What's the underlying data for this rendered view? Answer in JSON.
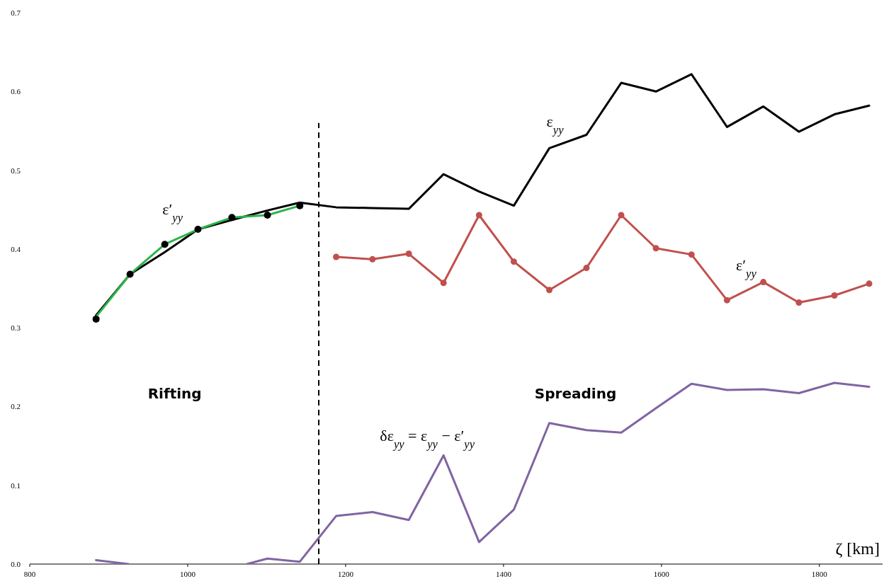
{
  "chart_data": {
    "type": "line",
    "xlabel": "ζ [km]",
    "x": [
      884,
      927,
      971,
      1013,
      1056,
      1101,
      1142,
      1188,
      1234,
      1280,
      1324,
      1369,
      1413,
      1458,
      1505,
      1549,
      1593,
      1638,
      1683,
      1729,
      1774,
      1819,
      1863
    ],
    "series": [
      {
        "name": "ε$_{yy}$",
        "color": "#000000",
        "values": [
          0.316,
          0.368,
          0.396,
          0.425,
          0.437,
          0.449,
          0.459,
          0.453,
          0.452,
          0.451,
          0.495,
          0.473,
          0.455,
          0.528,
          0.545,
          0.611,
          0.6,
          0.622,
          0.555,
          0.581,
          0.549,
          0.571,
          0.582
        ]
      },
      {
        "name": "ε′$_{yy}$",
        "color": "#2db34a",
        "x": [
          884,
          927,
          971,
          1013,
          1056,
          1101,
          1142
        ],
        "values": [
          0.314,
          0.368,
          0.406,
          0.425,
          0.44,
          0.443,
          0.455
        ]
      },
      {
        "type": "scatter",
        "marker": "circle",
        "color": "#000000",
        "x": [
          884,
          927,
          971,
          1013,
          1056,
          1101,
          1142
        ],
        "values": [
          0.311,
          0.368,
          0.406,
          0.425,
          0.44,
          0.443,
          0.455
        ]
      },
      {
        "name": "ε′$_{yy}$",
        "color": "#c0504d",
        "marker": "circle",
        "x": [
          1188,
          1234,
          1280,
          1324,
          1369,
          1413,
          1458,
          1505,
          1549,
          1593,
          1638,
          1683,
          1729,
          1774,
          1819,
          1863
        ],
        "values": [
          0.39,
          0.387,
          0.394,
          0.357,
          0.443,
          0.384,
          0.348,
          0.376,
          0.443,
          0.401,
          0.393,
          0.335,
          0.358,
          0.332,
          0.341,
          0.356
        ]
      },
      {
        "name": "δε$_{yy}$ = ε$_{yy}$ − ε′$_{yy}$",
        "color": "#8064a2",
        "x": [
          884,
          925,
          1000,
          1075,
          1101,
          1142,
          1188,
          1234,
          1280,
          1324,
          1369,
          1413,
          1458,
          1505,
          1549,
          1593,
          1638,
          1683,
          1729,
          1774,
          1819,
          1863
        ],
        "values": [
          0.005,
          0,
          null,
          0,
          0.007,
          0.003,
          0.061,
          0.066,
          0.056,
          0.138,
          0.028,
          0.069,
          0.179,
          0.17,
          0.167,
          0.198,
          0.229,
          0.221,
          0.222,
          0.217,
          0.23,
          0.225
        ]
      }
    ],
    "xlim": [
      800,
      1880
    ],
    "xticks": [
      800,
      1000,
      1200,
      1400,
      1600,
      1800
    ],
    "ylim": [
      0,
      0.7
    ],
    "yticks": [
      {
        "value": 0,
        "label": "0.0"
      },
      0.1,
      0.2,
      0.3,
      0.4,
      0.5,
      0.6,
      0.7
    ],
    "grid": false,
    "marker": "none",
    "line_style": "solid",
    "ref_lines": [
      {
        "axis": "x",
        "value": 1166,
        "line_style": "dashed",
        "color": "#000000"
      }
    ],
    "annotations": [
      "Rifting",
      "Spreading"
    ]
  }
}
